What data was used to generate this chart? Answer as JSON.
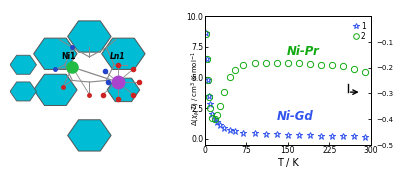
{
  "xlabel": "T / K",
  "ylabel": "Δ(χₘ·T) / cm³ K mol⁻¹",
  "xlim": [
    0,
    300
  ],
  "ylim": [
    -0.5,
    10.0
  ],
  "ylim2": [
    -0.5,
    -0.0
  ],
  "yticks": [
    0.0,
    2.5,
    5.0,
    7.5,
    10.0
  ],
  "yticks2": [
    -0.5,
    -0.4,
    -0.3,
    -0.2,
    -0.1
  ],
  "xticks": [
    0,
    75,
    150,
    225,
    300
  ],
  "nipr_color": "#11aa11",
  "nigd_color": "#3355ee",
  "label_nipr": "Ni-Pr",
  "label_nigd": "Ni-Gd",
  "legend_labels": [
    "1",
    "2"
  ],
  "nipr_T": [
    2,
    4,
    6,
    8,
    10,
    14,
    18,
    22,
    28,
    35,
    45,
    55,
    70,
    90,
    110,
    130,
    150,
    170,
    190,
    210,
    230,
    250,
    270,
    290
  ],
  "nipr_dchiT": [
    8.5,
    6.5,
    4.8,
    3.4,
    2.5,
    1.7,
    1.6,
    1.9,
    2.7,
    3.8,
    5.0,
    5.6,
    6.0,
    6.15,
    6.2,
    6.2,
    6.2,
    6.15,
    6.1,
    6.05,
    6.0,
    5.9,
    5.7,
    5.4
  ],
  "nigd_T": [
    2,
    4,
    6,
    8,
    10,
    14,
    18,
    22,
    28,
    35,
    45,
    55,
    70,
    90,
    110,
    130,
    150,
    170,
    190,
    210,
    230,
    250,
    270,
    290
  ],
  "nigd_dchiT": [
    8.6,
    6.5,
    4.8,
    3.5,
    2.8,
    2.0,
    1.6,
    1.4,
    1.1,
    0.85,
    0.7,
    0.6,
    0.5,
    0.45,
    0.4,
    0.38,
    0.33,
    0.3,
    0.27,
    0.25,
    0.22,
    0.2,
    0.18,
    0.17
  ],
  "bg_color": "#ffffff",
  "hex_color": "#00bcd4",
  "hex_edge": "#555555",
  "ni_color": "#22bb44",
  "ln_color": "#aa44cc",
  "bond_color": "#888888",
  "o_color": "#cc2222",
  "n_color": "#2244cc"
}
